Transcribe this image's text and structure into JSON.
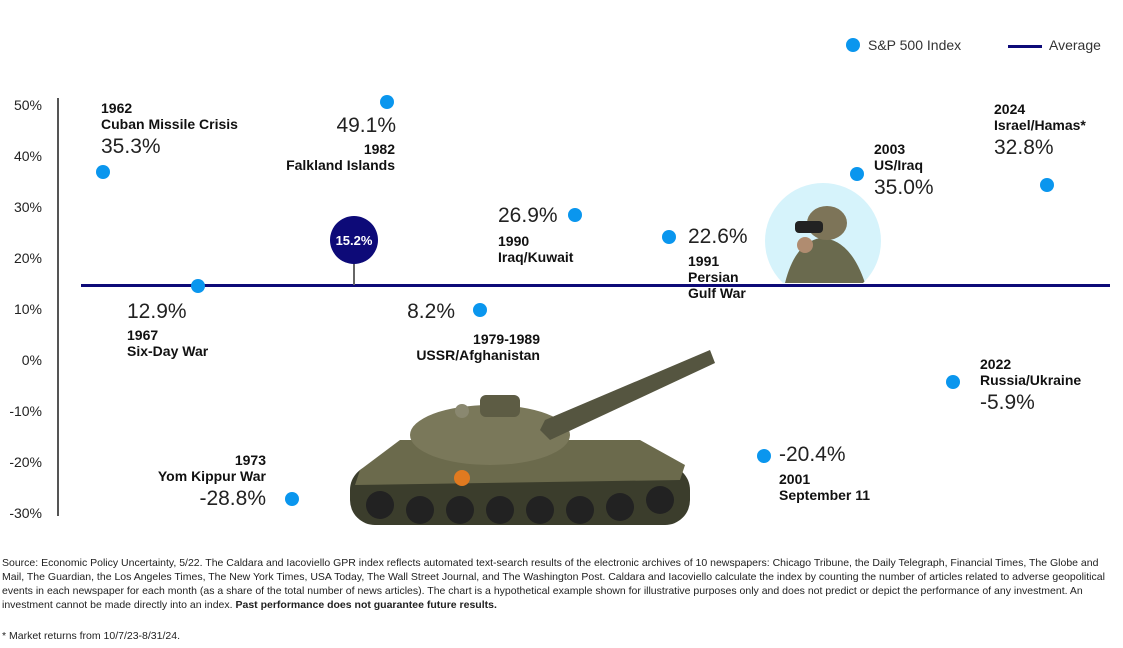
{
  "chart_data": {
    "type": "scatter",
    "title": "",
    "xlabel": "",
    "ylabel": "",
    "ylim": [
      -30,
      50
    ],
    "y_tick_labels": [
      "50%",
      "40%",
      "30%",
      "20%",
      "10%",
      "0%",
      "-10%",
      "-20%",
      "-30%"
    ],
    "legend": {
      "placement": "top-right",
      "entries": [
        "S&P 500 Index",
        "Average"
      ]
    },
    "average": {
      "value": 15.2,
      "label": "15.2%"
    },
    "colors": {
      "points": "#0a96ee",
      "average": "#0d0a78"
    },
    "points": [
      {
        "year": "1962",
        "event": "Cuban Missile Crisis",
        "value": 35.3,
        "label": "35.3%"
      },
      {
        "year": "1967",
        "event": "Six-Day War",
        "value": 12.9,
        "label": "12.9%"
      },
      {
        "year": "1973",
        "event": "Yom Kippur War",
        "value": -28.8,
        "label": "-28.8%"
      },
      {
        "year": "1982",
        "event": "Falkland Islands",
        "value": 49.1,
        "label": "49.1%"
      },
      {
        "year": "1979-1989",
        "event": "USSR/Afghanistan",
        "value": 8.2,
        "label": "8.2%"
      },
      {
        "year": "1990",
        "event": "Iraq/Kuwait",
        "value": 26.9,
        "label": "26.9%"
      },
      {
        "year": "1991",
        "event": "Persian Gulf War",
        "value": 22.6,
        "label": "22.6%"
      },
      {
        "year": "2001",
        "event": "September 11",
        "value": -20.4,
        "label": "-20.4%"
      },
      {
        "year": "2003",
        "event": "US/Iraq",
        "value": 35.0,
        "label": "35.0%"
      },
      {
        "year": "2022",
        "event": "Russia/Ukraine",
        "value": -5.9,
        "label": "-5.9%"
      },
      {
        "year": "2024",
        "event": "Israel/Hamas*",
        "value": 32.8,
        "label": "32.8%"
      }
    ]
  },
  "footnote": {
    "source": "Source: Economic Policy Uncertainty, 5/22. The Caldara and Iacoviello GPR index reflects automated text-search results of the electronic archives of 10 newspapers: Chicago Tribune, the Daily Telegraph, Financial Times, The Globe and Mail, The Guardian, the Los Angeles Times, The New York Times, USA Today, The Wall Street Journal, and The Washington Post. Caldara and Iacoviello calculate the index by counting the number of articles related to adverse geopolitical events in each newspaper for each month (as a share of the total number of news articles). The chart is a hypothetical example shown for illustrative purposes only and does not predict or depict the performance of any investment. An investment cannot be made directly into an index.",
    "disclaimer": "Past performance does not guarantee future results.",
    "market_note": "* Market returns from 10/7/23-8/31/24."
  }
}
